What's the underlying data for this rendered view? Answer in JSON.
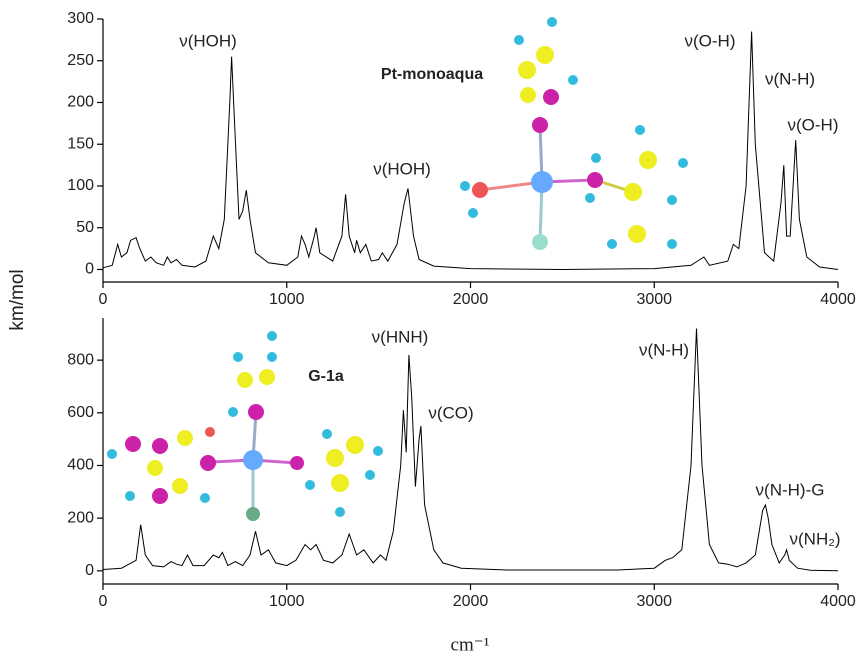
{
  "ylabel": "km/mol",
  "xlabel": "cm⁻¹",
  "chart_data": [
    {
      "type": "line",
      "label": "Pt-monoaqua",
      "color": "#000000",
      "xlim": [
        0,
        4000
      ],
      "ylim": [
        -15,
        300
      ],
      "xticks": [
        0,
        1000,
        2000,
        3000,
        4000
      ],
      "yticks": [
        0,
        50,
        100,
        150,
        200,
        250,
        300
      ],
      "annotations": [
        "ν(HOH)",
        "ν(HOH)",
        "ν(O-H)",
        "ν(N-H)",
        "ν(O-H)"
      ],
      "x": [
        0,
        50,
        80,
        100,
        130,
        150,
        180,
        200,
        230,
        260,
        290,
        330,
        350,
        370,
        400,
        430,
        500,
        560,
        600,
        630,
        660,
        690,
        700,
        715,
        740,
        760,
        780,
        800,
        830,
        900,
        1000,
        1060,
        1080,
        1100,
        1120,
        1150,
        1160,
        1180,
        1250,
        1300,
        1320,
        1340,
        1370,
        1380,
        1400,
        1430,
        1460,
        1500,
        1520,
        1550,
        1600,
        1640,
        1660,
        1690,
        1720,
        1800,
        2000,
        2500,
        3000,
        3200,
        3270,
        3300,
        3400,
        3430,
        3460,
        3500,
        3530,
        3550,
        3600,
        3650,
        3690,
        3705,
        3720,
        3740,
        3770,
        3790,
        3830,
        3900,
        4000
      ],
      "values": [
        2,
        5,
        30,
        15,
        20,
        35,
        38,
        25,
        10,
        15,
        8,
        5,
        15,
        8,
        12,
        5,
        3,
        10,
        40,
        25,
        60,
        200,
        255,
        180,
        60,
        70,
        95,
        60,
        20,
        8,
        5,
        15,
        40,
        30,
        15,
        40,
        50,
        20,
        10,
        40,
        90,
        40,
        20,
        35,
        20,
        30,
        10,
        12,
        20,
        10,
        30,
        80,
        97,
        40,
        12,
        4,
        1,
        0,
        1,
        5,
        15,
        5,
        10,
        30,
        25,
        100,
        285,
        150,
        20,
        10,
        80,
        125,
        40,
        40,
        155,
        60,
        15,
        3,
        0
      ]
    },
    {
      "type": "line",
      "label": "G-1a",
      "color": "#000000",
      "xlim": [
        0,
        4000
      ],
      "ylim": [
        -50,
        960
      ],
      "xticks": [
        0,
        1000,
        2000,
        3000,
        4000
      ],
      "yticks": [
        0,
        200,
        400,
        600,
        800
      ],
      "annotations": [
        "ν(HNH)",
        "ν(CO)",
        "ν(N-H)",
        "ν(N-H)-G",
        "ν(NH₂)"
      ],
      "x": [
        0,
        100,
        180,
        205,
        230,
        270,
        330,
        370,
        400,
        430,
        460,
        490,
        550,
        600,
        630,
        650,
        680,
        720,
        760,
        800,
        830,
        860,
        900,
        940,
        1000,
        1050,
        1100,
        1130,
        1160,
        1200,
        1250,
        1300,
        1340,
        1380,
        1420,
        1470,
        1510,
        1540,
        1580,
        1620,
        1635,
        1650,
        1665,
        1680,
        1700,
        1720,
        1730,
        1750,
        1800,
        1850,
        1950,
        2200,
        2800,
        3000,
        3060,
        3100,
        3150,
        3200,
        3230,
        3260,
        3300,
        3350,
        3400,
        3450,
        3500,
        3550,
        3590,
        3605,
        3620,
        3640,
        3680,
        3710,
        3720,
        3735,
        3780,
        3850,
        4000
      ],
      "values": [
        5,
        10,
        40,
        175,
        60,
        20,
        15,
        35,
        25,
        20,
        60,
        20,
        20,
        60,
        50,
        70,
        20,
        35,
        20,
        60,
        150,
        60,
        80,
        30,
        20,
        40,
        100,
        80,
        100,
        40,
        30,
        60,
        140,
        60,
        80,
        30,
        60,
        40,
        150,
        400,
        610,
        450,
        820,
        660,
        320,
        500,
        550,
        250,
        80,
        30,
        10,
        3,
        3,
        10,
        40,
        50,
        80,
        400,
        920,
        400,
        100,
        30,
        25,
        15,
        30,
        60,
        230,
        250,
        200,
        100,
        30,
        60,
        80,
        40,
        10,
        2,
        0
      ]
    }
  ]
}
